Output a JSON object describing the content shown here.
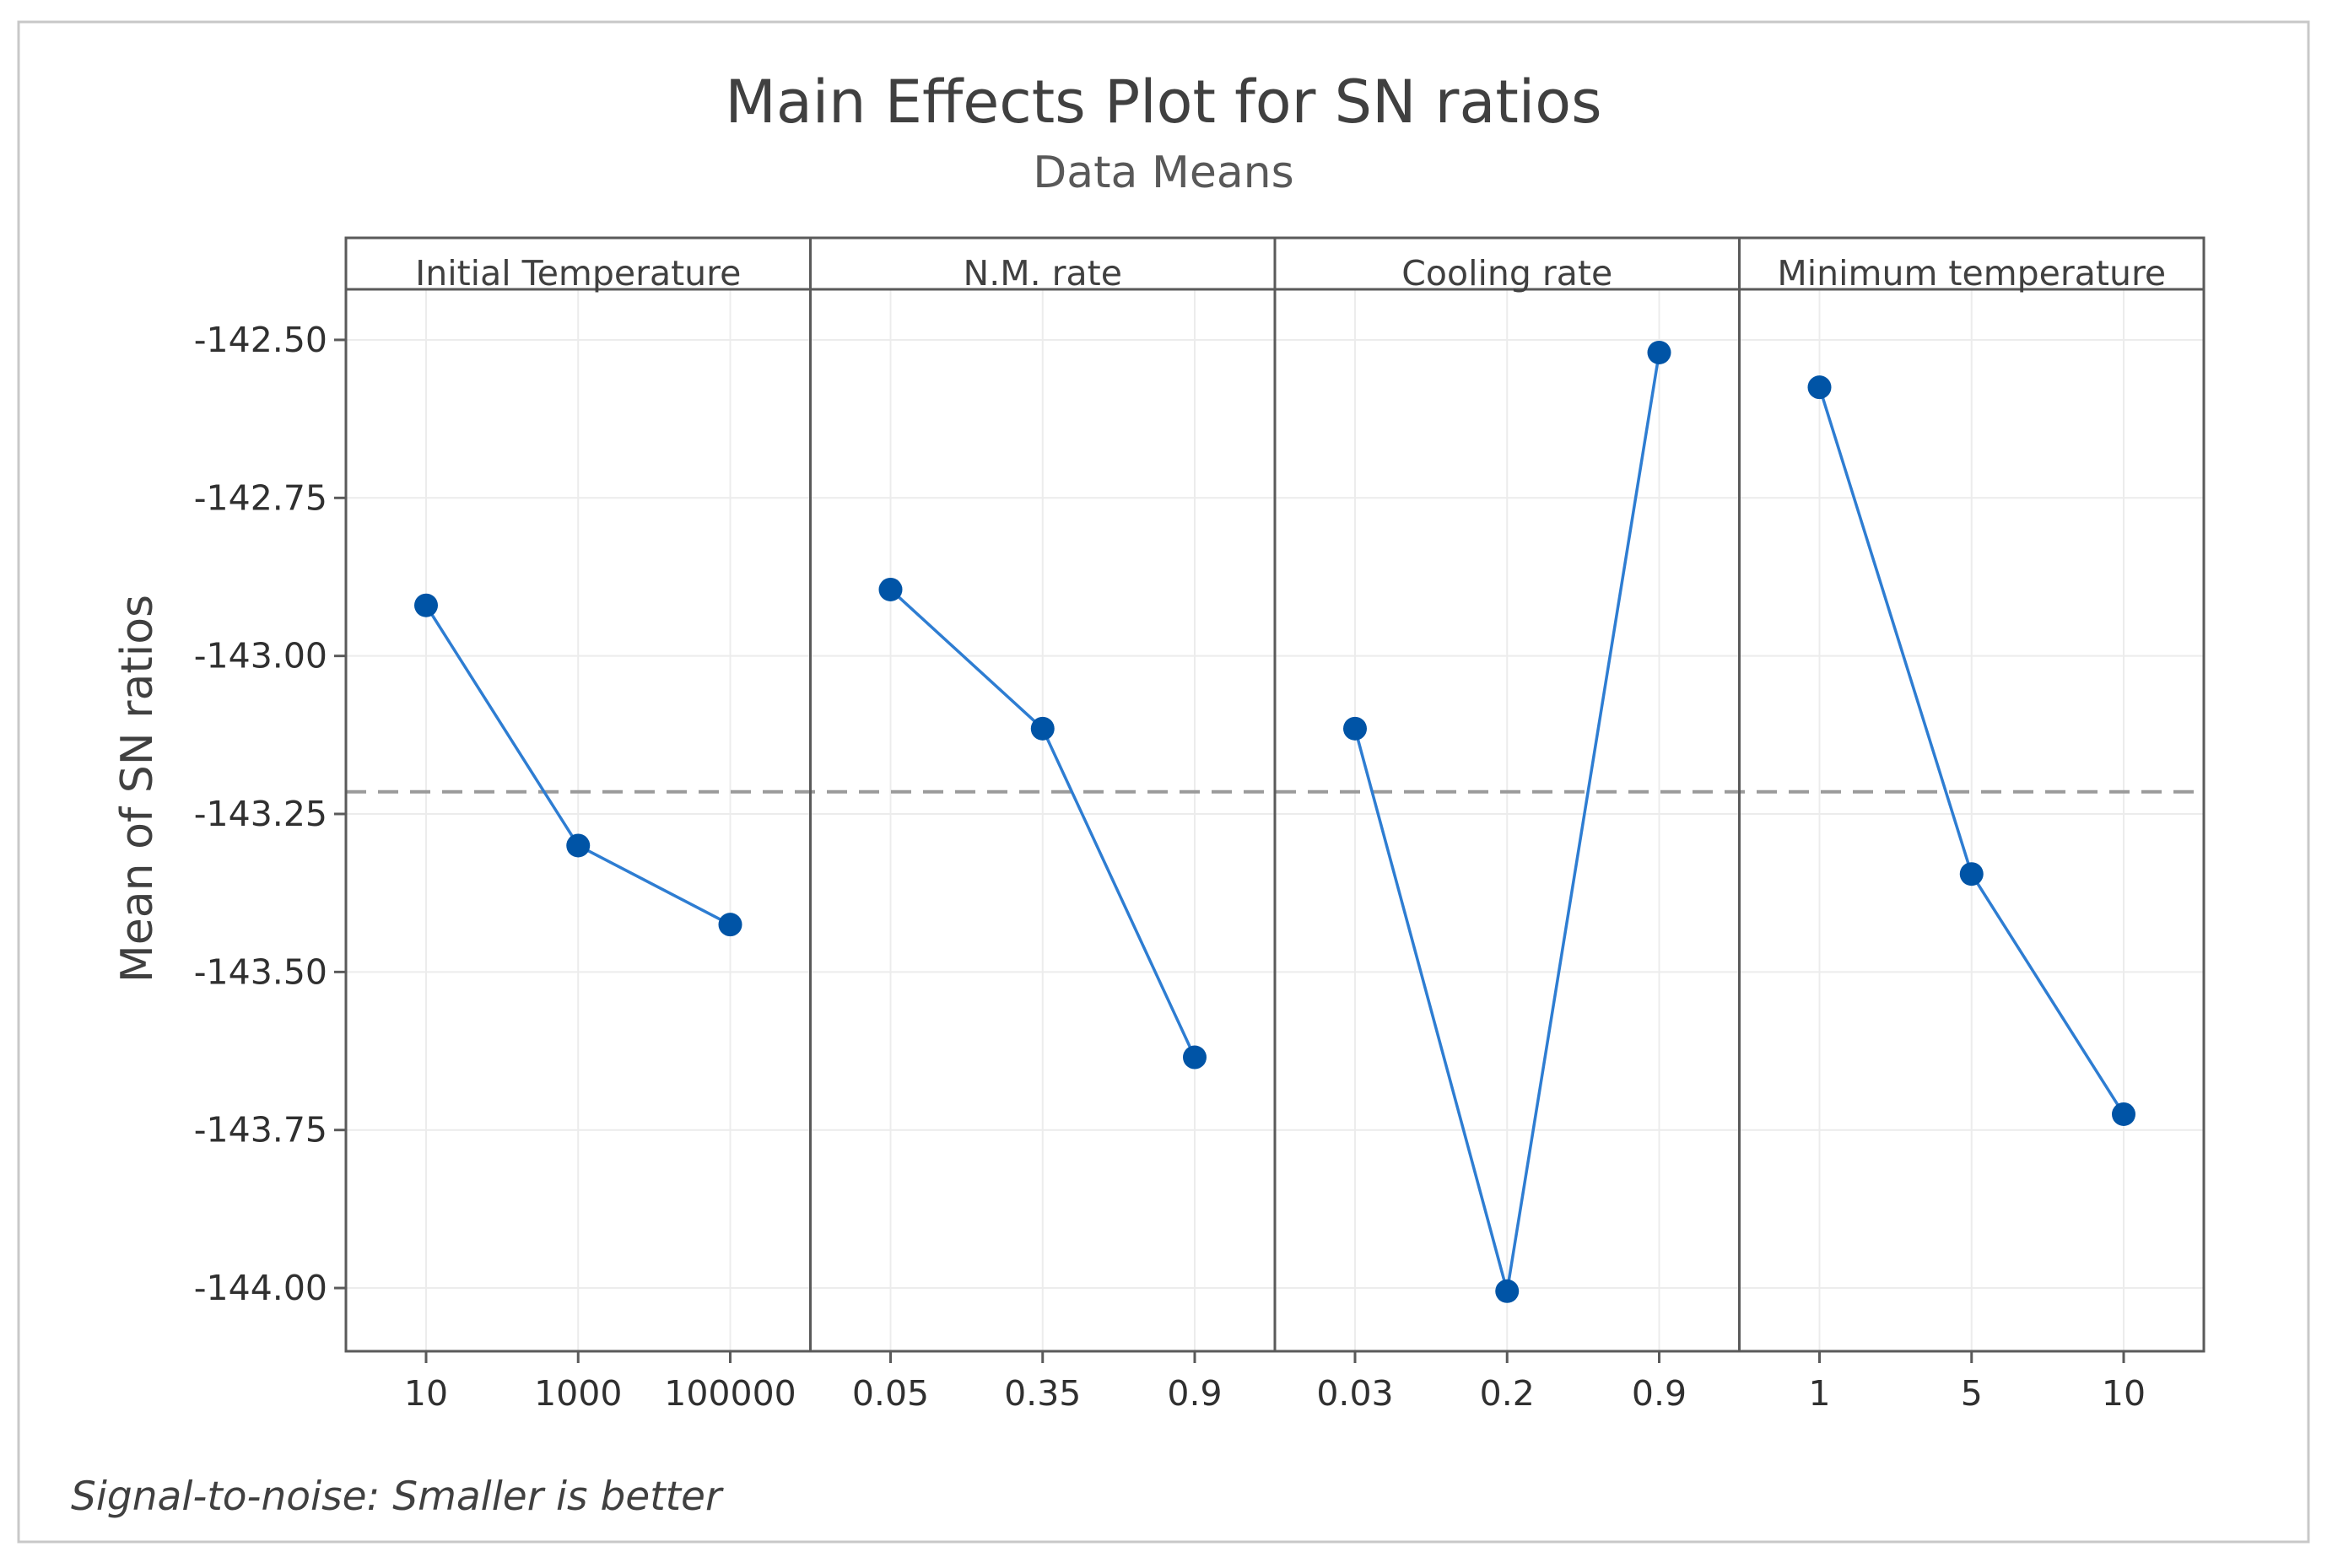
{
  "chart_data": {
    "type": "line",
    "title": "Main Effects Plot for SN ratios",
    "subtitle": "Data Means",
    "ylabel": "Mean of SN ratios",
    "ylim": [
      -144.1,
      -142.42
    ],
    "yticks": [
      -142.5,
      -142.75,
      -143.0,
      -143.25,
      -143.5,
      -143.75,
      -144.0
    ],
    "ytick_labels": [
      "-142.50",
      "-142.75",
      "-143.00",
      "-143.25",
      "-143.50",
      "-143.75",
      "-144.00"
    ],
    "reference_line": -143.215,
    "grid": true,
    "panels": [
      {
        "label": "Initial Temperature",
        "categories": [
          "10",
          "1000",
          "100000"
        ],
        "values": [
          -142.92,
          -143.3,
          -143.425
        ]
      },
      {
        "label": "N.M. rate",
        "categories": [
          "0.05",
          "0.35",
          "0.9"
        ],
        "values": [
          -142.895,
          -143.115,
          -143.635
        ]
      },
      {
        "label": "Cooling rate",
        "categories": [
          "0.03",
          "0.2",
          "0.9"
        ],
        "values": [
          -143.115,
          -144.005,
          -142.52
        ]
      },
      {
        "label": "Minimum temperature",
        "categories": [
          "1",
          "5",
          "10"
        ],
        "values": [
          -142.575,
          -143.345,
          -143.725
        ]
      }
    ],
    "footnote": "Signal-to-noise: Smaller is better",
    "series_color": "#0054A6",
    "line_color": "#2E7DD2"
  }
}
